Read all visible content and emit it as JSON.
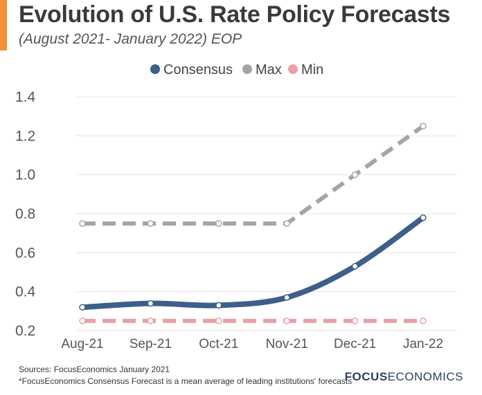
{
  "header": {
    "title": "Evolution of U.S. Rate Policy Forecasts",
    "subtitle": "(August 2021- January 2022) EOP"
  },
  "chart_data": {
    "type": "line",
    "title": "Evolution of U.S. Rate Policy Forecasts",
    "subtitle": "(August 2021- January 2022) EOP",
    "categories": [
      "Aug-21",
      "Sep-21",
      "Oct-21",
      "Nov-21",
      "Dec-21",
      "Jan-22"
    ],
    "y_ticks": [
      "0.2",
      "0.4",
      "0.6",
      "0.8",
      "1.0",
      "1.2",
      "1.4"
    ],
    "ylim": [
      0.2,
      1.4
    ],
    "grid": true,
    "legend_placement": "top-center",
    "series": [
      {
        "name": "Consensus",
        "color": "#3d5f8a",
        "style": "solid",
        "values": [
          0.32,
          0.34,
          0.33,
          0.37,
          0.53,
          0.78
        ]
      },
      {
        "name": "Max",
        "color": "#a5a5a5",
        "style": "dashed",
        "values": [
          0.75,
          0.75,
          0.75,
          0.75,
          1.0,
          1.25
        ]
      },
      {
        "name": "Min",
        "color": "#e8a0a8",
        "style": "dashed",
        "values": [
          0.25,
          0.25,
          0.25,
          0.25,
          0.25,
          0.25
        ]
      }
    ]
  },
  "footer": {
    "sources": "Sources: FocusEconomics January 2021",
    "note": "*FocusEconomics Consensus Forecast is a mean average of leading institutions' forecasts",
    "logo_bold": "FOCUS",
    "logo_regular": "ECONOMICS"
  }
}
